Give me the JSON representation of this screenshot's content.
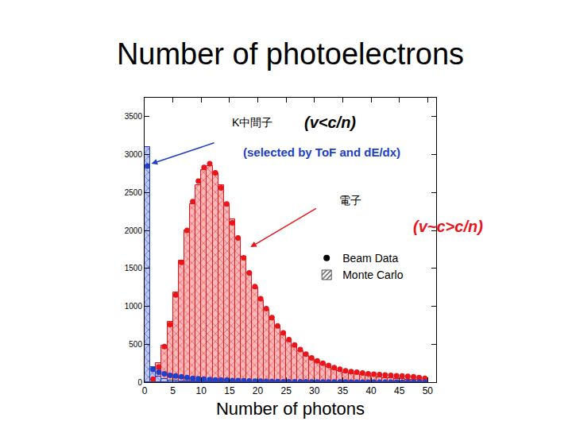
{
  "chart_data": {
    "type": "histogram",
    "title": "Number of photoelectrons",
    "x_label": "Number of photons",
    "bins": [
      0,
      1,
      2,
      3,
      4,
      5,
      6,
      7,
      8,
      9,
      10,
      11,
      12,
      13,
      14,
      15,
      16,
      17,
      18,
      19,
      20,
      21,
      22,
      23,
      24,
      25,
      26,
      27,
      28,
      29,
      30,
      31,
      32,
      33,
      34,
      35,
      36,
      37,
      38,
      39,
      40,
      41,
      42,
      43,
      44,
      45,
      46,
      47,
      48,
      49,
      50
    ],
    "series": [
      {
        "type": "bar",
        "marker": "hatch",
        "color": "#e8161b",
        "values": [
          0,
          60,
          250,
          480,
          800,
          1180,
          1600,
          2000,
          2350,
          2600,
          2800,
          2850,
          2750,
          2600,
          2350,
          2150,
          1900,
          1650,
          1450,
          1250,
          1080,
          950,
          820,
          720,
          620,
          540,
          470,
          410,
          350,
          300,
          260,
          230,
          200,
          170,
          150,
          130,
          115,
          100,
          90,
          80,
          70,
          60,
          55,
          50,
          45,
          40,
          35,
          30,
          28,
          25
        ]
      },
      {
        "type": "scatter",
        "marker": "circle",
        "color": "#e8161b",
        "values": [
          null,
          40,
          200,
          470,
          760,
          1150,
          1580,
          2000,
          2380,
          2650,
          2830,
          2880,
          2760,
          2560,
          2350,
          2100,
          1900,
          1640,
          1440,
          1260,
          1100,
          970,
          850,
          740,
          650,
          560,
          490,
          430,
          370,
          320,
          280,
          250,
          220,
          190,
          170,
          150,
          140,
          130,
          120,
          110,
          105,
          100,
          95,
          90,
          85,
          80,
          75,
          70,
          60,
          50
        ]
      },
      {
        "type": "bar",
        "marker": "hatch",
        "color": "#2040c8",
        "values": [
          3100,
          200,
          70,
          40,
          25,
          20,
          15,
          12,
          10,
          8,
          7,
          6,
          5,
          4,
          3,
          3,
          2,
          2,
          1,
          1,
          0,
          0,
          0,
          0,
          0,
          0,
          0,
          0,
          0,
          0,
          0,
          0,
          0,
          0,
          0,
          0,
          0,
          0,
          0,
          0,
          0,
          0,
          0,
          0,
          0,
          0,
          0,
          0,
          0,
          0
        ]
      },
      {
        "type": "scatter",
        "marker": "circle",
        "color": "#2040c8",
        "values": [
          2850,
          170,
          130,
          110,
          90,
          80,
          70,
          60,
          50,
          45,
          40,
          35,
          30,
          28,
          25,
          22,
          20,
          18,
          15,
          13,
          12,
          10,
          8,
          7,
          6,
          5,
          5,
          4,
          4,
          3,
          3,
          3,
          2,
          2,
          2,
          2,
          1,
          1,
          1,
          1,
          1,
          1,
          1,
          1,
          1,
          1,
          1,
          1,
          1,
          1
        ]
      }
    ],
    "legend_items": [
      {
        "label": "Beam Data",
        "marker": "circle",
        "color": "#000000"
      },
      {
        "label": "Monte Carlo",
        "marker": "hatch",
        "color": "#555555"
      }
    ],
    "annotations": [
      {
        "text": "K中間子",
        "color": "#000000"
      },
      {
        "text": "(v<c/n)",
        "color": "#000000"
      },
      {
        "text": "(selected by ToF and dE/dx)",
        "color": "#2040c8"
      },
      {
        "text": "電子",
        "color": "#000000"
      },
      {
        "text": "(v~c>c/n)",
        "color": "#e8161b"
      }
    ],
    "xlim": [
      0,
      51.5
    ],
    "ylim": [
      0,
      3750
    ],
    "xticks": [
      0,
      5,
      10,
      15,
      20,
      25,
      30,
      35,
      40,
      45,
      50
    ],
    "yticks": [
      0,
      500,
      1000,
      1500,
      2000,
      2500,
      3000,
      3500
    ],
    "grid": false
  }
}
